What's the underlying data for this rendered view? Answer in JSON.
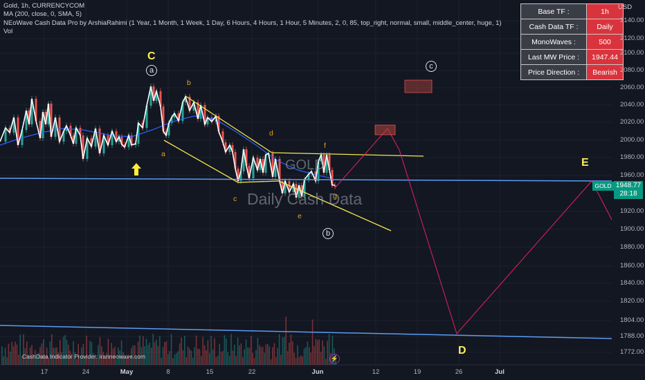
{
  "legend": {
    "title": "Gold, 1h, CURRENCYCOM",
    "ma": "MA (200, close, 0, SMA, 5)",
    "indicator": "NEoWave Cash Data Pro by ArshiaRahimi (1 Year, 1 Month, 1 Week, 1 Day, 6 Hours, 4 Hours, 1 Hour, 5 Minutes, 2, 0, 85, top_right, normal, small, middle_center, huge, 1)",
    "vol": "Vol"
  },
  "info_table": [
    {
      "key": "Base TF :",
      "value": "1h"
    },
    {
      "key": "Cash Data TF :",
      "value": "Daily"
    },
    {
      "key": "MonoWaves :",
      "value": "500"
    },
    {
      "key": "Last MW Price :",
      "value": "1947.44"
    },
    {
      "key": "Price Direction :",
      "value": "Bearish"
    }
  ],
  "currency": "USD",
  "price_axis": [
    "2140.00",
    "2120.00",
    "2100.00",
    "2080.00",
    "2060.00",
    "2040.00",
    "2020.00",
    "2000.00",
    "1980.00",
    "1960.00",
    "1920.00",
    "1900.00",
    "1880.00",
    "1860.00",
    "1840.00",
    "1820.00",
    "1804.00",
    "1788.00",
    "1772.00"
  ],
  "time_axis": [
    "17",
    "24",
    "May",
    "8",
    "15",
    "22",
    "Jun",
    "12",
    "19",
    "26",
    "Jul"
  ],
  "last_price": {
    "value": "1948.77",
    "countdown": "28:18"
  },
  "gold_tag": "GOLD",
  "watermark": {
    "symbol": "GOLD",
    "text": "Daily Cash Data"
  },
  "wave_labels": {
    "a": "a",
    "b": "b",
    "c": "c",
    "d": "d",
    "e": "e",
    "f": "f",
    "g": "g",
    "big_C": "C",
    "big_D": "D",
    "big_E": "E",
    "circ_a": "a",
    "circ_b": "b",
    "circ_c": "c"
  },
  "provider": "CashData Indicator Provider: iranneowave.com",
  "colors": {
    "background": "#131722",
    "price_line": "#ffffff",
    "ma": "#2962ff",
    "channel": "#f5e94a",
    "horizontal": "#5b9cf6",
    "projection": "#e91e63",
    "bull_candle": "#26a69a",
    "bear_candle": "#ef5350",
    "badge": "#d9343d"
  }
}
